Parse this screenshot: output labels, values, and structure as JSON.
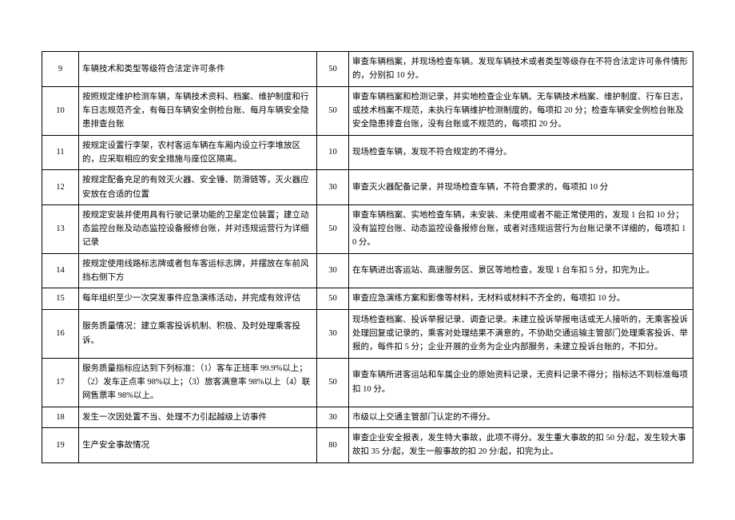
{
  "rows": [
    {
      "num": "9",
      "item": "车辆技术和类型等级符合法定许可条件",
      "score": "50",
      "criteria": "审查车辆档案，并现场检查车辆。发现车辆技术或者类型等级存在不符合法定许可条件情形的，分别扣 10 分。"
    },
    {
      "num": "10",
      "item": "按照规定维护检测车辆，车辆技术资料、档案、维护制度和行车日志规范齐全，有每日车辆安全例检台账、每月车辆安全隐患排查台账",
      "score": "50",
      "criteria": "审查车辆档案和检测记录，并实地检查企业车辆。无车辆技术档案、维护制度、行车日志，或技术档案不规范，未执行车辆维护检测制度的，每项扣 20 分；检查车辆安全例检台账及安全隐患排查台账，没有台账或不规范的，每项扣 20 分。"
    },
    {
      "num": "11",
      "item": "按规定设置行李架，农村客运车辆在车厢内设立行李堆放区的，应采取相应的安全措施与座位区隔离。",
      "score": "10",
      "criteria": "现场检查车辆，发现不符合规定的不得分。"
    },
    {
      "num": "12",
      "item": "按规定配备充足的有效灭火器、安全锤、防滑链等，灭火器应安放在合适的位置",
      "score": "30",
      "criteria": "审查灭火器配备记录，并现场检查车辆，不符合要求的，每项扣 10 分"
    },
    {
      "num": "13",
      "item": "按规定安装并使用具有行驶记录功能的卫星定位装置；建立动态监控台账及动态监控设备报修台账，并对违规运营行为详细记录",
      "score": "50",
      "criteria": "审查车辆档案、实地检查车辆，未安装、未使用或者不能正常使用的，发现 1 台扣 10 分；没有监控台账、动态监控设备报修台账，或者对违规运营行为台账记录不详细的，每项扣 10 分。"
    },
    {
      "num": "14",
      "item": "按规定使用线路标志牌或者包车客运标志牌，并摆放在车前风挡右侧下方",
      "score": "30",
      "criteria": "在车辆进出客运站、高速服务区、景区等地检查，发现 1 台车扣 5 分，扣完为止。"
    },
    {
      "num": "15",
      "item": "每年组织至少一次突发事件应急演练活动，并完成有效评估",
      "score": "50",
      "criteria": "审查应急演练方案和影像等材料，无材料或材料不齐全的，每项扣 10 分。"
    },
    {
      "num": "16",
      "item": "服务质量情况：建立乘客投诉机制、积极、及时处理乘客投诉。",
      "score": "30",
      "criteria": "现场检查档案、投诉举报记录、调查记录。未建立投诉举报电话或无人接听的，无乘客投诉处理回复或记录的，乘客对处理结果不满意的，不协助交通运输主管部门处理乘客投诉、举报的，每件扣 5 分；企业开展的业务为企业内部服务，未建立投诉台账的，不扣分。"
    },
    {
      "num": "17",
      "item": "服务质量指标应达到下列标准：（1）客车正班率 99.9%以上；（2）发车正点率 98%以上；（3）旅客满意率 98%以上（4）联网售票率 98%以上。",
      "score": "50",
      "criteria": "审查车辆所进客运站和车属企业的原始资料记录，无资料记录不得分；指标达不到标准每项扣 10 分。"
    },
    {
      "num": "18",
      "item": "发生一次因处置不当、处理不力引起越级上访事件",
      "score": "30",
      "criteria": "市级以上交通主管部门认定的不得分。"
    },
    {
      "num": "19",
      "item": "生产安全事故情况",
      "score": "80",
      "criteria": "审查企业安全报表，发生特大事故，此项不得分。发生重大事故的扣 50 分/起，发生较大事故扣 35 分/起，发生一般事故的扣 20 分/起，扣完为止。"
    }
  ]
}
